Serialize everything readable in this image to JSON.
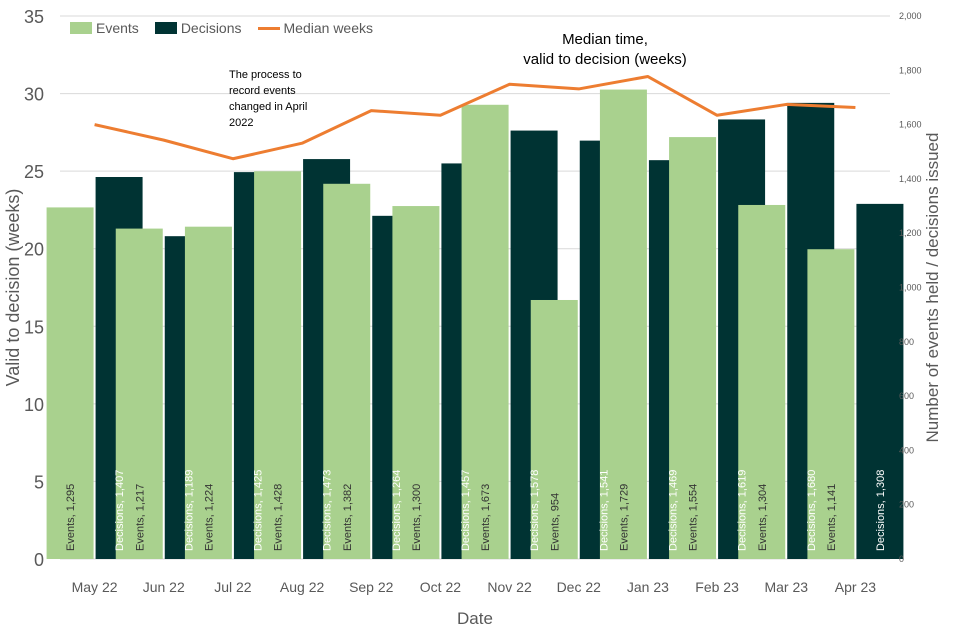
{
  "colors": {
    "events": "#a9d18e",
    "decisions": "#003333",
    "median": "#ed7d31",
    "axis_text": "#595959",
    "grid": "#d9d9d9"
  },
  "legend": {
    "events": "Events",
    "decisions": "Decisions",
    "median": "Median weeks"
  },
  "annotations": {
    "process_note": [
      "The process to",
      "record events",
      "changed in April",
      "2022"
    ],
    "median_title": [
      "Median time,",
      "valid to decision (weeks)"
    ]
  },
  "chart_data": {
    "type": "bar",
    "categories": [
      "May 22",
      "Jun 22",
      "Jul 22",
      "Aug 22",
      "Sep 22",
      "Oct 22",
      "Nov 22",
      "Dec 22",
      "Jan 23",
      "Feb 23",
      "Mar 23",
      "Apr 23"
    ],
    "series": [
      {
        "name": "Events",
        "axis": "right",
        "values": [
          1295,
          1217,
          1224,
          1428,
          1382,
          1300,
          1673,
          954,
          1729,
          1554,
          1304,
          1141
        ],
        "labels": [
          "Events, 1,295",
          "Events, 1,217",
          "Events, 1,224",
          "Events, 1,428",
          "Events, 1,382",
          "Events, 1,300",
          "Events, 1,673",
          "Events, 954",
          "Events, 1,729",
          "Events, 1,554",
          "Events, 1,304",
          "Events, 1,141"
        ]
      },
      {
        "name": "Decisions",
        "axis": "right",
        "values": [
          1407,
          1189,
          1425,
          1473,
          1264,
          1457,
          1578,
          1541,
          1469,
          1619,
          1680,
          1308
        ],
        "labels": [
          "Decisions, 1,407",
          "Decisions, 1,189",
          "Decisions, 1,425",
          "Decisions, 1,473",
          "Decisions, 1,264",
          "Decisions, 1,457",
          "Decisions, 1,578",
          "Decisions, 1,541",
          "Decisions, 1,469",
          "Decisions, 1,619",
          "Decisions, 1,680",
          "Decisions, 1,308"
        ]
      },
      {
        "name": "Median weeks",
        "axis": "left",
        "type": "line",
        "values": [
          28.0,
          27.0,
          25.8,
          26.8,
          28.9,
          28.6,
          30.6,
          30.3,
          31.1,
          28.6,
          29.3,
          29.1
        ]
      }
    ],
    "xlabel": "Date",
    "ylabel": "Valid to decision (weeks)",
    "y2label": "Number of events held / decisions issued",
    "ylim": [
      0,
      35
    ],
    "y2lim": [
      0,
      2000
    ],
    "yticks": [
      "0",
      "5",
      "10",
      "15",
      "20",
      "25",
      "30",
      "35"
    ],
    "y2ticks": [
      "0",
      "200",
      "400",
      "600",
      "800",
      "1,000",
      "1,200",
      "1,400",
      "1,600",
      "1,800",
      "2,000"
    ],
    "grid": true,
    "legend_position": "top-left"
  }
}
